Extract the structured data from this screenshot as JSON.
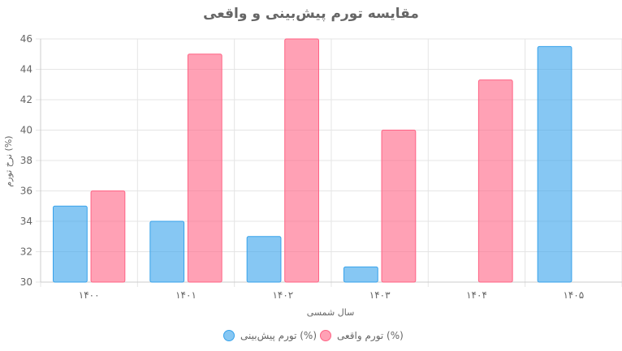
{
  "chart_data": {
    "type": "bar",
    "title": "مقایسه تورم پیش‌بینی و واقعی",
    "xlabel": "سال شمسی",
    "ylabel": "نرخ تورم (%)",
    "categories": [
      "۱۴۰۰",
      "۱۴۰۱",
      "۱۴۰۲",
      "۱۴۰۳",
      "۱۴۰۴",
      "۱۴۰۵"
    ],
    "ylim": [
      30,
      46
    ],
    "yticks": [
      30,
      32,
      34,
      36,
      38,
      40,
      42,
      44,
      46
    ],
    "grid": true,
    "legend_position": "bottom",
    "series": [
      {
        "name": "تورم پیش‌بینی (%)",
        "values": [
          35,
          34,
          33,
          31,
          30,
          45.5
        ],
        "color": "#36a2eb"
      },
      {
        "name": "تورم واقعی (%)",
        "values": [
          36,
          45,
          46,
          40,
          43.3,
          null
        ],
        "color": "#ff6384"
      }
    ]
  }
}
